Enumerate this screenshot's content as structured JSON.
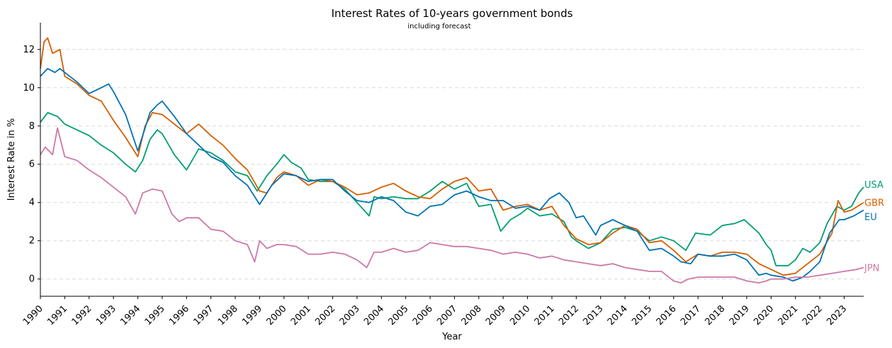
{
  "chart_data": {
    "type": "line",
    "title": "Interest Rates of 10-years government bonds",
    "subtitle": "including forecast",
    "xlabel": "Year",
    "ylabel": "Interest Rate in %",
    "xlim": [
      1990.0,
      2023.8
    ],
    "ylim": [
      -0.9,
      13.4
    ],
    "x_ticks": [
      "1990",
      "1991",
      "1992",
      "1993",
      "1994",
      "1995",
      "1996",
      "1997",
      "1998",
      "1999",
      "2000",
      "2001",
      "2002",
      "2003",
      "2004",
      "2005",
      "2006",
      "2007",
      "2008",
      "2009",
      "2010",
      "2011",
      "2012",
      "2013",
      "2014",
      "2015",
      "2016",
      "2017",
      "2018",
      "2019",
      "2020",
      "2021",
      "2022",
      "2023"
    ],
    "y_ticks": [
      "0",
      "2",
      "4",
      "6",
      "8",
      "10",
      "12"
    ],
    "grid": "horizontal dashed",
    "legend": "labels at line ends",
    "series": [
      {
        "name": "USA",
        "color": "#009e73",
        "x": [
          1990.0,
          1990.3,
          1990.7,
          1991.0,
          1991.5,
          1992.0,
          1992.5,
          1993.0,
          1993.5,
          1993.9,
          1994.2,
          1994.5,
          1994.8,
          1995.0,
          1995.5,
          1996.0,
          1996.5,
          1997.0,
          1997.5,
          1998.0,
          1998.5,
          1998.9,
          1999.3,
          1999.7,
          2000.0,
          2000.3,
          2000.7,
          2001.0,
          2001.5,
          2002.0,
          2002.5,
          2003.0,
          2003.5,
          2003.7,
          2004.0,
          2004.5,
          2005.0,
          2005.5,
          2006.0,
          2006.5,
          2007.0,
          2007.5,
          2008.0,
          2008.5,
          2008.9,
          2009.3,
          2009.7,
          2010.0,
          2010.5,
          2011.0,
          2011.5,
          2011.8,
          2012.0,
          2012.5,
          2013.0,
          2013.5,
          2014.0,
          2014.5,
          2015.0,
          2015.5,
          2016.0,
          2016.5,
          2016.9,
          2017.5,
          2018.0,
          2018.5,
          2018.9,
          2019.5,
          2019.8,
          2020.0,
          2020.2,
          2020.7,
          2021.0,
          2021.3,
          2021.6,
          2022.0,
          2022.3,
          2022.7,
          2023.0,
          2023.3,
          2023.6,
          2023.8
        ],
        "values": [
          8.2,
          8.7,
          8.5,
          8.1,
          7.8,
          7.5,
          7.0,
          6.6,
          6.0,
          5.6,
          6.2,
          7.3,
          7.8,
          7.6,
          6.5,
          5.7,
          6.8,
          6.6,
          6.2,
          5.6,
          5.4,
          4.6,
          5.4,
          6.0,
          6.5,
          6.1,
          5.8,
          5.2,
          5.1,
          5.1,
          4.7,
          4.0,
          3.3,
          4.3,
          4.2,
          4.3,
          4.2,
          4.2,
          4.6,
          5.1,
          4.7,
          5.0,
          3.8,
          3.9,
          2.5,
          3.1,
          3.4,
          3.7,
          3.3,
          3.4,
          3.0,
          2.2,
          2.0,
          1.6,
          1.9,
          2.6,
          2.7,
          2.5,
          2.0,
          2.2,
          2.0,
          1.5,
          2.4,
          2.3,
          2.8,
          2.9,
          3.1,
          2.4,
          1.8,
          1.5,
          0.7,
          0.7,
          1.0,
          1.6,
          1.4,
          1.9,
          2.9,
          3.8,
          3.6,
          3.8,
          4.5,
          4.8
        ]
      },
      {
        "name": "GBR",
        "color": "#d55e00",
        "x": [
          1990.0,
          1990.15,
          1990.3,
          1990.5,
          1990.8,
          1991.0,
          1991.5,
          1992.0,
          1992.5,
          1993.0,
          1993.5,
          1994.0,
          1994.3,
          1994.6,
          1995.0,
          1995.5,
          1996.0,
          1996.5,
          1997.0,
          1997.5,
          1998.0,
          1998.5,
          1999.0,
          1999.3,
          1999.7,
          2000.0,
          2000.5,
          2001.0,
          2001.5,
          2002.0,
          2002.5,
          2003.0,
          2003.5,
          2004.0,
          2004.5,
          2005.0,
          2005.5,
          2006.0,
          2006.5,
          2007.0,
          2007.5,
          2008.0,
          2008.5,
          2009.0,
          2009.5,
          2010.0,
          2010.5,
          2011.0,
          2011.5,
          2012.0,
          2012.5,
          2013.0,
          2013.5,
          2014.0,
          2014.5,
          2015.0,
          2015.5,
          2016.0,
          2016.5,
          2017.0,
          2017.5,
          2018.0,
          2018.5,
          2019.0,
          2019.5,
          2020.0,
          2020.5,
          2021.0,
          2021.5,
          2022.0,
          2022.5,
          2022.75,
          2023.0,
          2023.3,
          2023.8
        ],
        "values": [
          11.0,
          12.4,
          12.6,
          11.8,
          12.0,
          10.6,
          10.2,
          9.6,
          9.3,
          8.3,
          7.4,
          6.4,
          8.0,
          8.7,
          8.6,
          8.1,
          7.6,
          8.1,
          7.5,
          7.0,
          6.3,
          5.7,
          4.6,
          4.5,
          5.3,
          5.6,
          5.4,
          4.9,
          5.2,
          5.1,
          4.8,
          4.4,
          4.5,
          4.8,
          5.0,
          4.6,
          4.3,
          4.2,
          4.7,
          5.1,
          5.3,
          4.6,
          4.7,
          3.6,
          3.8,
          3.9,
          3.6,
          3.8,
          2.8,
          2.1,
          1.8,
          1.9,
          2.4,
          2.8,
          2.6,
          1.9,
          2.0,
          1.5,
          0.9,
          1.3,
          1.2,
          1.4,
          1.4,
          1.3,
          0.8,
          0.5,
          0.2,
          0.3,
          0.8,
          1.3,
          2.4,
          4.1,
          3.5,
          3.6,
          4.0
        ]
      },
      {
        "name": "EU",
        "color": "#0072b2",
        "x": [
          1990.0,
          1990.3,
          1990.6,
          1990.8,
          1991.0,
          1991.5,
          1992.0,
          1992.5,
          1992.8,
          1993.0,
          1993.5,
          1994.0,
          1994.5,
          1994.8,
          1995.0,
          1995.5,
          1996.0,
          1996.5,
          1997.0,
          1997.5,
          1998.0,
          1998.5,
          1999.0,
          1999.5,
          2000.0,
          2000.5,
          2001.0,
          2001.5,
          2002.0,
          2002.5,
          2003.0,
          2003.5,
          2004.0,
          2004.5,
          2005.0,
          2005.5,
          2006.0,
          2006.5,
          2007.0,
          2007.5,
          2008.0,
          2008.5,
          2009.0,
          2009.5,
          2010.0,
          2010.5,
          2010.9,
          2011.3,
          2011.7,
          2012.0,
          2012.3,
          2012.8,
          2013.0,
          2013.5,
          2014.0,
          2014.5,
          2015.0,
          2015.5,
          2016.0,
          2016.3,
          2016.7,
          2017.0,
          2017.5,
          2018.0,
          2018.5,
          2019.0,
          2019.5,
          2019.8,
          2020.0,
          2020.5,
          2020.9,
          2021.3,
          2021.6,
          2022.0,
          2022.4,
          2022.8,
          2023.0,
          2023.4,
          2023.8
        ],
        "values": [
          10.6,
          11.0,
          10.8,
          11.0,
          10.8,
          10.3,
          9.7,
          10.0,
          10.2,
          9.8,
          8.6,
          6.7,
          8.7,
          9.1,
          9.3,
          8.5,
          7.6,
          7.0,
          6.4,
          6.1,
          5.4,
          4.9,
          3.9,
          4.9,
          5.5,
          5.4,
          5.1,
          5.2,
          5.2,
          4.6,
          4.1,
          4.0,
          4.3,
          4.1,
          3.5,
          3.3,
          3.8,
          3.9,
          4.4,
          4.6,
          4.3,
          4.1,
          4.1,
          3.7,
          3.8,
          3.6,
          4.2,
          4.5,
          4.0,
          3.2,
          3.3,
          2.3,
          2.8,
          3.1,
          2.8,
          2.5,
          1.5,
          1.6,
          1.2,
          0.9,
          0.8,
          1.3,
          1.2,
          1.2,
          1.3,
          1.0,
          0.2,
          0.3,
          0.2,
          0.1,
          -0.1,
          0.1,
          0.4,
          0.9,
          2.4,
          3.1,
          3.1,
          3.3,
          3.6
        ]
      },
      {
        "name": "JPN",
        "color": "#cc79a7",
        "x": [
          1990.0,
          1990.2,
          1990.5,
          1990.7,
          1991.0,
          1991.5,
          1992.0,
          1992.5,
          1993.0,
          1993.5,
          1993.9,
          1994.2,
          1994.6,
          1995.0,
          1995.4,
          1995.7,
          1996.0,
          1996.5,
          1997.0,
          1997.5,
          1998.0,
          1998.5,
          1998.8,
          1999.0,
          1999.3,
          1999.7,
          2000.0,
          2000.5,
          2001.0,
          2001.5,
          2002.0,
          2002.5,
          2003.0,
          2003.4,
          2003.7,
          2004.0,
          2004.5,
          2005.0,
          2005.5,
          2006.0,
          2006.5,
          2007.0,
          2007.5,
          2008.0,
          2008.5,
          2009.0,
          2009.5,
          2010.0,
          2010.5,
          2011.0,
          2011.5,
          2012.0,
          2012.5,
          2013.0,
          2013.5,
          2014.0,
          2014.5,
          2015.0,
          2015.5,
          2016.0,
          2016.3,
          2016.6,
          2017.0,
          2017.5,
          2018.0,
          2018.5,
          2019.0,
          2019.5,
          2019.8,
          2020.0,
          2020.5,
          2021.0,
          2021.5,
          2022.0,
          2022.5,
          2023.0,
          2023.5,
          2023.8
        ],
        "values": [
          6.5,
          6.9,
          6.5,
          7.9,
          6.4,
          6.2,
          5.7,
          5.3,
          4.8,
          4.3,
          3.4,
          4.5,
          4.7,
          4.6,
          3.4,
          3.0,
          3.2,
          3.2,
          2.6,
          2.5,
          2.0,
          1.8,
          0.9,
          2.0,
          1.6,
          1.8,
          1.8,
          1.7,
          1.3,
          1.3,
          1.4,
          1.3,
          1.0,
          0.6,
          1.4,
          1.4,
          1.6,
          1.4,
          1.5,
          1.9,
          1.8,
          1.7,
          1.7,
          1.6,
          1.5,
          1.3,
          1.4,
          1.3,
          1.1,
          1.2,
          1.0,
          0.9,
          0.8,
          0.7,
          0.8,
          0.6,
          0.5,
          0.4,
          0.4,
          -0.1,
          -0.2,
          0.0,
          0.1,
          0.1,
          0.1,
          0.1,
          -0.1,
          -0.2,
          -0.1,
          0.0,
          0.0,
          0.1,
          0.1,
          0.2,
          0.3,
          0.4,
          0.5,
          0.6
        ]
      }
    ]
  }
}
